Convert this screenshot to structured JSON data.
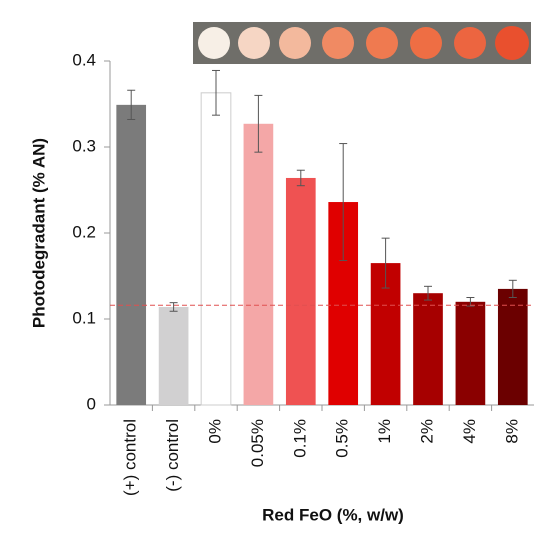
{
  "chart_data": {
    "type": "bar",
    "x_label": "Red FeO (%, w/w)",
    "y_label": "Photodegradant (% AN)",
    "categories": [
      "(+) control",
      "(-) control",
      "0%",
      "0.05%",
      "0.1%",
      "0.5%",
      "1%",
      "2%",
      "4%",
      "8%"
    ],
    "values": [
      0.349,
      0.114,
      0.363,
      0.327,
      0.264,
      0.236,
      0.165,
      0.13,
      0.12,
      0.135
    ],
    "errors": [
      0.017,
      0.005,
      0.026,
      0.033,
      0.009,
      0.068,
      0.029,
      0.008,
      0.005,
      0.01
    ],
    "colors": [
      "#7b7b7b",
      "#d1d0d1",
      "#ffffff",
      "#f4a7a7",
      "#ef5252",
      "#e00000",
      "#c10000",
      "#a60000",
      "#8a0000",
      "#6b0000"
    ],
    "reference_line": {
      "value": 0.116,
      "color": "#e05050"
    },
    "ylim": [
      0,
      0.4
    ],
    "yticks": [
      0,
      0.1,
      0.2,
      0.3,
      0.4
    ],
    "grid": false
  }
}
